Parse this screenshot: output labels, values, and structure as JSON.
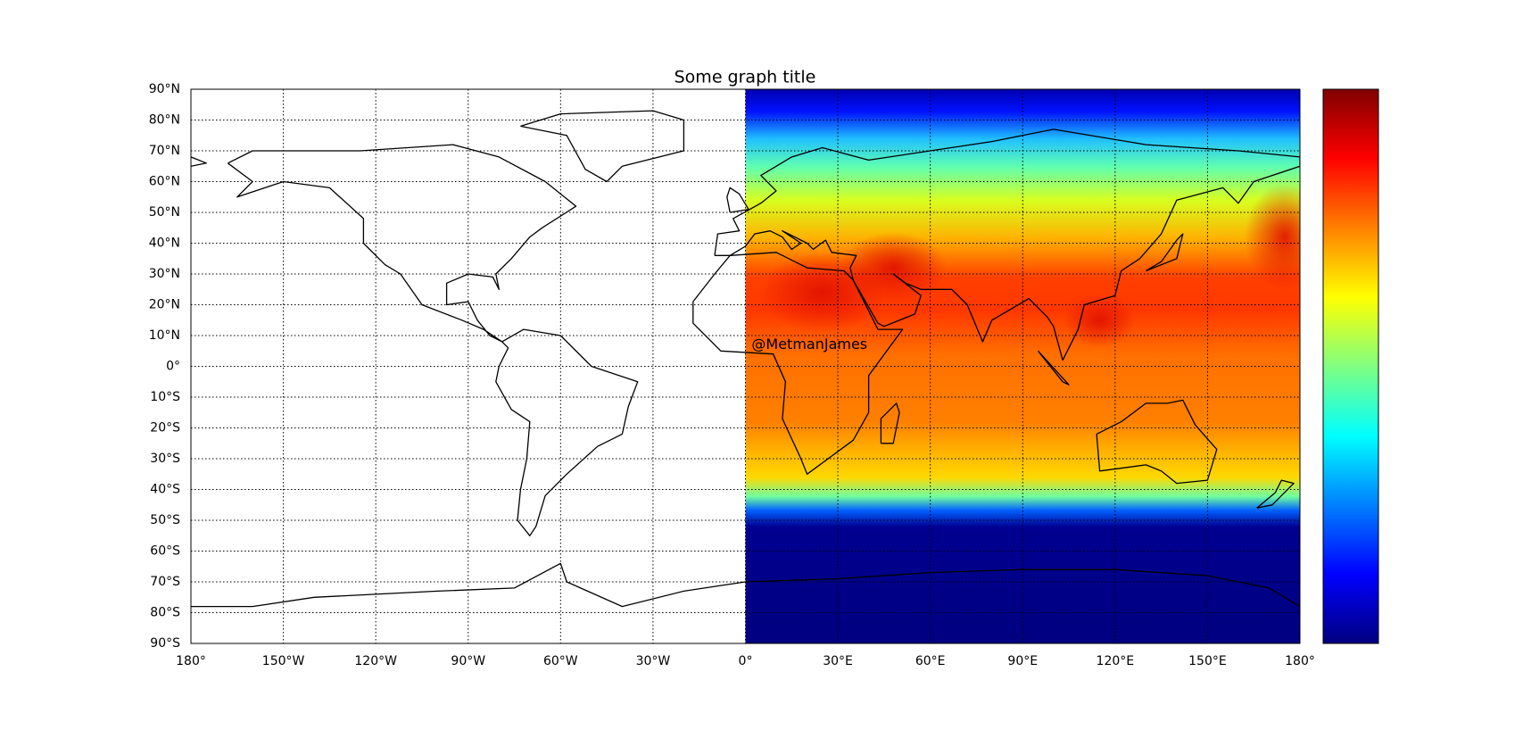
{
  "chart_data": {
    "type": "map",
    "title": "Some graph title",
    "annotation": "@MetmanJames",
    "xlim": [
      -180,
      180
    ],
    "ylim": [
      -90,
      90
    ],
    "xticks": [
      {
        "value": -180,
        "label": "180°"
      },
      {
        "value": -150,
        "label": "150°W"
      },
      {
        "value": -120,
        "label": "120°W"
      },
      {
        "value": -90,
        "label": "90°W"
      },
      {
        "value": -60,
        "label": "60°W"
      },
      {
        "value": -30,
        "label": "30°W"
      },
      {
        "value": 0,
        "label": "0°"
      },
      {
        "value": 30,
        "label": "30°E"
      },
      {
        "value": 60,
        "label": "60°E"
      },
      {
        "value": 90,
        "label": "90°E"
      },
      {
        "value": 120,
        "label": "120°E"
      },
      {
        "value": 150,
        "label": "150°E"
      },
      {
        "value": 180,
        "label": "180°"
      }
    ],
    "yticks": [
      {
        "value": 90,
        "label": "90°N"
      },
      {
        "value": 80,
        "label": "80°N"
      },
      {
        "value": 70,
        "label": "70°N"
      },
      {
        "value": 60,
        "label": "60°N"
      },
      {
        "value": 50,
        "label": "50°N"
      },
      {
        "value": 40,
        "label": "40°N"
      },
      {
        "value": 30,
        "label": "30°N"
      },
      {
        "value": 20,
        "label": "20°N"
      },
      {
        "value": 10,
        "label": "10°N"
      },
      {
        "value": 0,
        "label": "0°"
      },
      {
        "value": -10,
        "label": "10°S"
      },
      {
        "value": -20,
        "label": "20°S"
      },
      {
        "value": -30,
        "label": "30°S"
      },
      {
        "value": -40,
        "label": "40°S"
      },
      {
        "value": -50,
        "label": "50°S"
      },
      {
        "value": -60,
        "label": "60°S"
      },
      {
        "value": -70,
        "label": "70°S"
      },
      {
        "value": -80,
        "label": "80°S"
      },
      {
        "value": -90,
        "label": "90°S"
      }
    ],
    "grid": true,
    "colormap": "jet",
    "colorbar": true
  }
}
